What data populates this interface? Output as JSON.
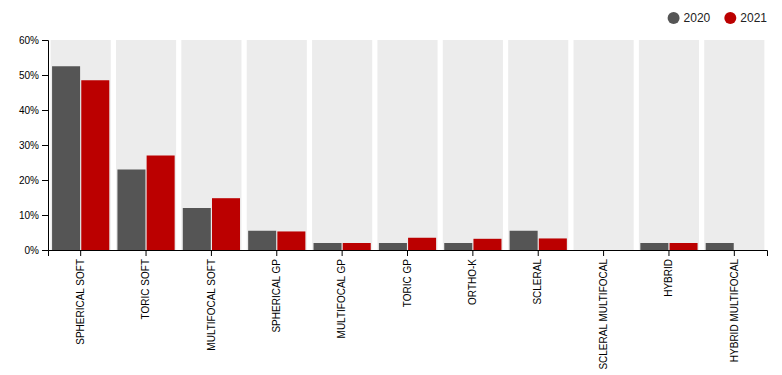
{
  "chart_data": {
    "type": "bar",
    "categories": [
      "SPHERICAL SOFT",
      "TORIC SOFT",
      "MULTIFOCAL SOFT",
      "SPHERICAL GP",
      "MULTIFOCAL GP",
      "TORIC GP",
      "ORTHO-K",
      "SCLERAL",
      "SCLERAL MULTIFOCAL",
      "HYBRID",
      "HYBRID MULTIFOCAL"
    ],
    "series": [
      {
        "name": "2020",
        "color": "#555555",
        "values": [
          52.5,
          23.0,
          12.0,
          5.5,
          2.0,
          2.0,
          2.0,
          5.5,
          0.0,
          2.0,
          2.0
        ]
      },
      {
        "name": "2021",
        "color": "#bb0000",
        "values": [
          48.5,
          27.0,
          14.8,
          5.3,
          2.0,
          3.5,
          3.2,
          3.3,
          0.0,
          2.0,
          0.0
        ]
      }
    ],
    "ylim": [
      0,
      60
    ],
    "yticks": [
      {
        "value": 0,
        "label": "0%"
      },
      {
        "value": 10,
        "label": "10%"
      },
      {
        "value": 20,
        "label": "20%"
      },
      {
        "value": 30,
        "label": "30%"
      },
      {
        "value": 40,
        "label": "40%"
      },
      {
        "value": 50,
        "label": "50%"
      },
      {
        "value": 60,
        "label": "60%"
      }
    ],
    "legend": "upper right",
    "grid": false
  }
}
